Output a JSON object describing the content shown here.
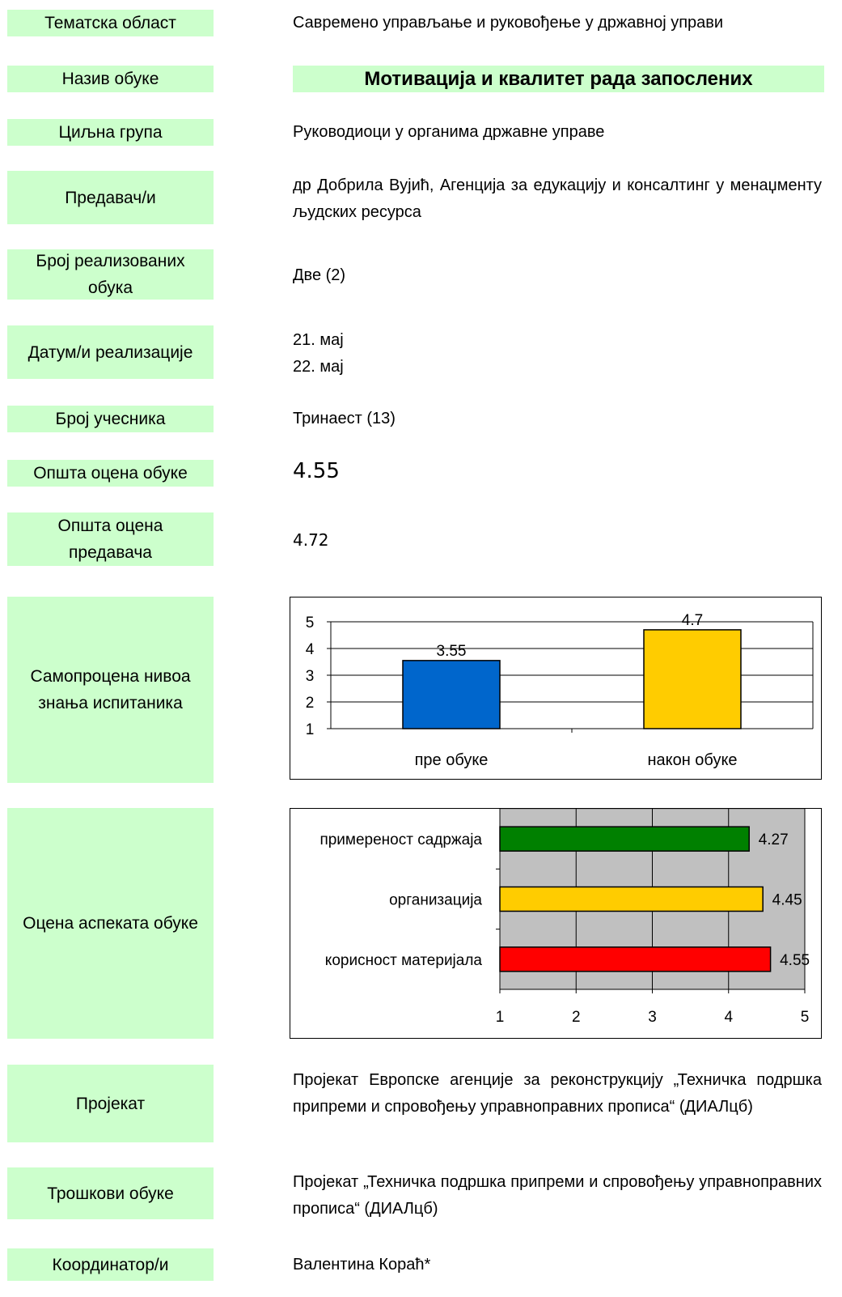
{
  "labels": {
    "thematic_area": "Тематска област",
    "training_name": "Назив обуке",
    "target_group": "Циљна група",
    "lecturers": "Предавач/и",
    "trainings_count": "Број реализованих обука",
    "dates": "Датум/и реализације",
    "participants": "Број учесника",
    "overall_training": "Општа оцена обуке",
    "overall_lecturer": "Општа оцена предавача",
    "self_assessment": "Самопроцена нивоа знања испитаника",
    "aspects": "Оцена аспеката обуке",
    "project": "Пројекат",
    "costs": "Трошкови обуке",
    "coordinators": "Координатор/и"
  },
  "values": {
    "thematic_area": "Савремено управљање и руковођење у државној управи",
    "training_name": "Мотивација и квалитет рада запослених",
    "target_group": "Руководиоци у органима државне управе",
    "lecturers": "др Добрила Вујић, Агенција за едукацију и консалтинг у менаџменту људских ресурса",
    "trainings_count": "Две (2)",
    "date_1": "21. мај",
    "date_2": "22. мај",
    "participants": "Тринаест (13)",
    "overall_training": "4.55",
    "overall_lecturer": "4.72",
    "project": "Пројекат Европске агенције за реконструкцију „Техничка подршка припреми и спровођењу управноправних прописа“ (ДИАЛцб)",
    "costs": "Пројекат „Техничка подршка припреми и спровођењу управноправних прописа“ (ДИАЛцб)",
    "coordinators": "Валентина Кораћ*"
  },
  "chart_data": [
    {
      "type": "bar",
      "categories": [
        "пре обуке",
        "након обуке"
      ],
      "values": [
        3.55,
        4.7
      ],
      "value_labels": [
        "3.55",
        "4.7"
      ],
      "ylim": [
        1,
        5
      ],
      "yticks": [
        "1",
        "2",
        "3",
        "4",
        "5"
      ],
      "colors": [
        "#0066cc",
        "#ffcc00"
      ],
      "grid": true
    },
    {
      "type": "bar",
      "orientation": "horizontal",
      "categories": [
        "примереност садржаја",
        "организација",
        "корисност материјала"
      ],
      "values": [
        4.27,
        4.45,
        4.55
      ],
      "value_labels": [
        "4.27",
        "4.45",
        "4.55"
      ],
      "xlim": [
        1,
        5
      ],
      "xticks": [
        "1",
        "2",
        "3",
        "4",
        "5"
      ],
      "colors": [
        "#008000",
        "#ffcc00",
        "#ff0000"
      ],
      "plot_background": "#c0c0c0",
      "grid": true
    }
  ]
}
